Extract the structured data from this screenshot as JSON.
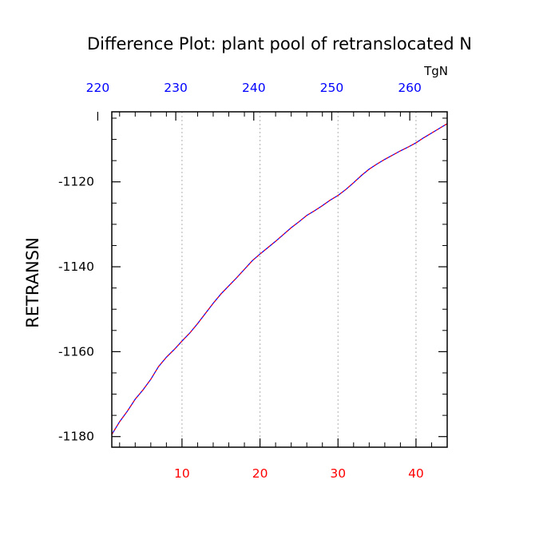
{
  "chart_data": {
    "type": "line",
    "title": "Difference Plot: plant pool of retranslocated N",
    "xlabel": "",
    "ylabel": "RETRANSN",
    "top_axis_units": "TgN",
    "xlim": [
      1,
      44
    ],
    "ylim": [
      -1182.5,
      -1103.5
    ],
    "bottom_ticks": [
      10,
      20,
      30,
      40
    ],
    "bottom_tick_labels": [
      "10",
      "20",
      "30",
      "40"
    ],
    "bottom_minor_ticks": [
      2,
      4,
      6,
      8,
      12,
      14,
      16,
      18,
      22,
      24,
      26,
      28,
      32,
      34,
      36,
      38,
      42
    ],
    "top_ticks": [
      220,
      230,
      240,
      250,
      260
    ],
    "top_tick_labels": [
      "220",
      "230",
      "240",
      "250",
      "260"
    ],
    "top_axis_offset": 220.8,
    "y_ticks": [
      -1180,
      -1160,
      -1140,
      -1120
    ],
    "y_tick_labels": [
      "-1180",
      "-1160",
      "-1140",
      "-1120"
    ],
    "y_minor_ticks": [
      -1175,
      -1170,
      -1165,
      -1155,
      -1150,
      -1145,
      -1135,
      -1130,
      -1125,
      -1115,
      -1110,
      -1105
    ],
    "grid": "vertical dotted at major bottom ticks",
    "colors": {
      "bottom_axis_labels": "#ff0000",
      "top_axis_labels": "#0000ff",
      "series_line": "#0000ff",
      "series_dash_overlay": "#ff0000",
      "grid": "#b0b0b0",
      "axes": "#000000"
    },
    "series": [
      {
        "x": [
          1,
          2,
          3,
          4,
          5,
          6,
          7,
          8,
          9,
          10,
          11,
          12,
          13,
          14,
          15,
          16,
          17,
          18,
          19,
          20,
          21,
          22,
          23,
          24,
          25,
          26,
          27,
          28,
          29,
          30,
          31,
          32,
          33,
          34,
          35,
          36,
          37,
          38,
          39,
          40,
          41,
          42,
          43,
          44
        ],
        "values": [
          -1179.5,
          -1176.5,
          -1174.0,
          -1171.2,
          -1169.0,
          -1166.5,
          -1163.5,
          -1161.3,
          -1159.5,
          -1157.5,
          -1155.6,
          -1153.4,
          -1151.0,
          -1148.6,
          -1146.4,
          -1144.5,
          -1142.6,
          -1140.6,
          -1138.6,
          -1137.0,
          -1135.5,
          -1134.0,
          -1132.4,
          -1130.8,
          -1129.4,
          -1127.9,
          -1126.8,
          -1125.6,
          -1124.3,
          -1123.2,
          -1121.8,
          -1120.2,
          -1118.5,
          -1117.0,
          -1115.8,
          -1114.7,
          -1113.7,
          -1112.7,
          -1111.8,
          -1110.8,
          -1109.6,
          -1108.5,
          -1107.4,
          -1106.3
        ]
      }
    ]
  }
}
